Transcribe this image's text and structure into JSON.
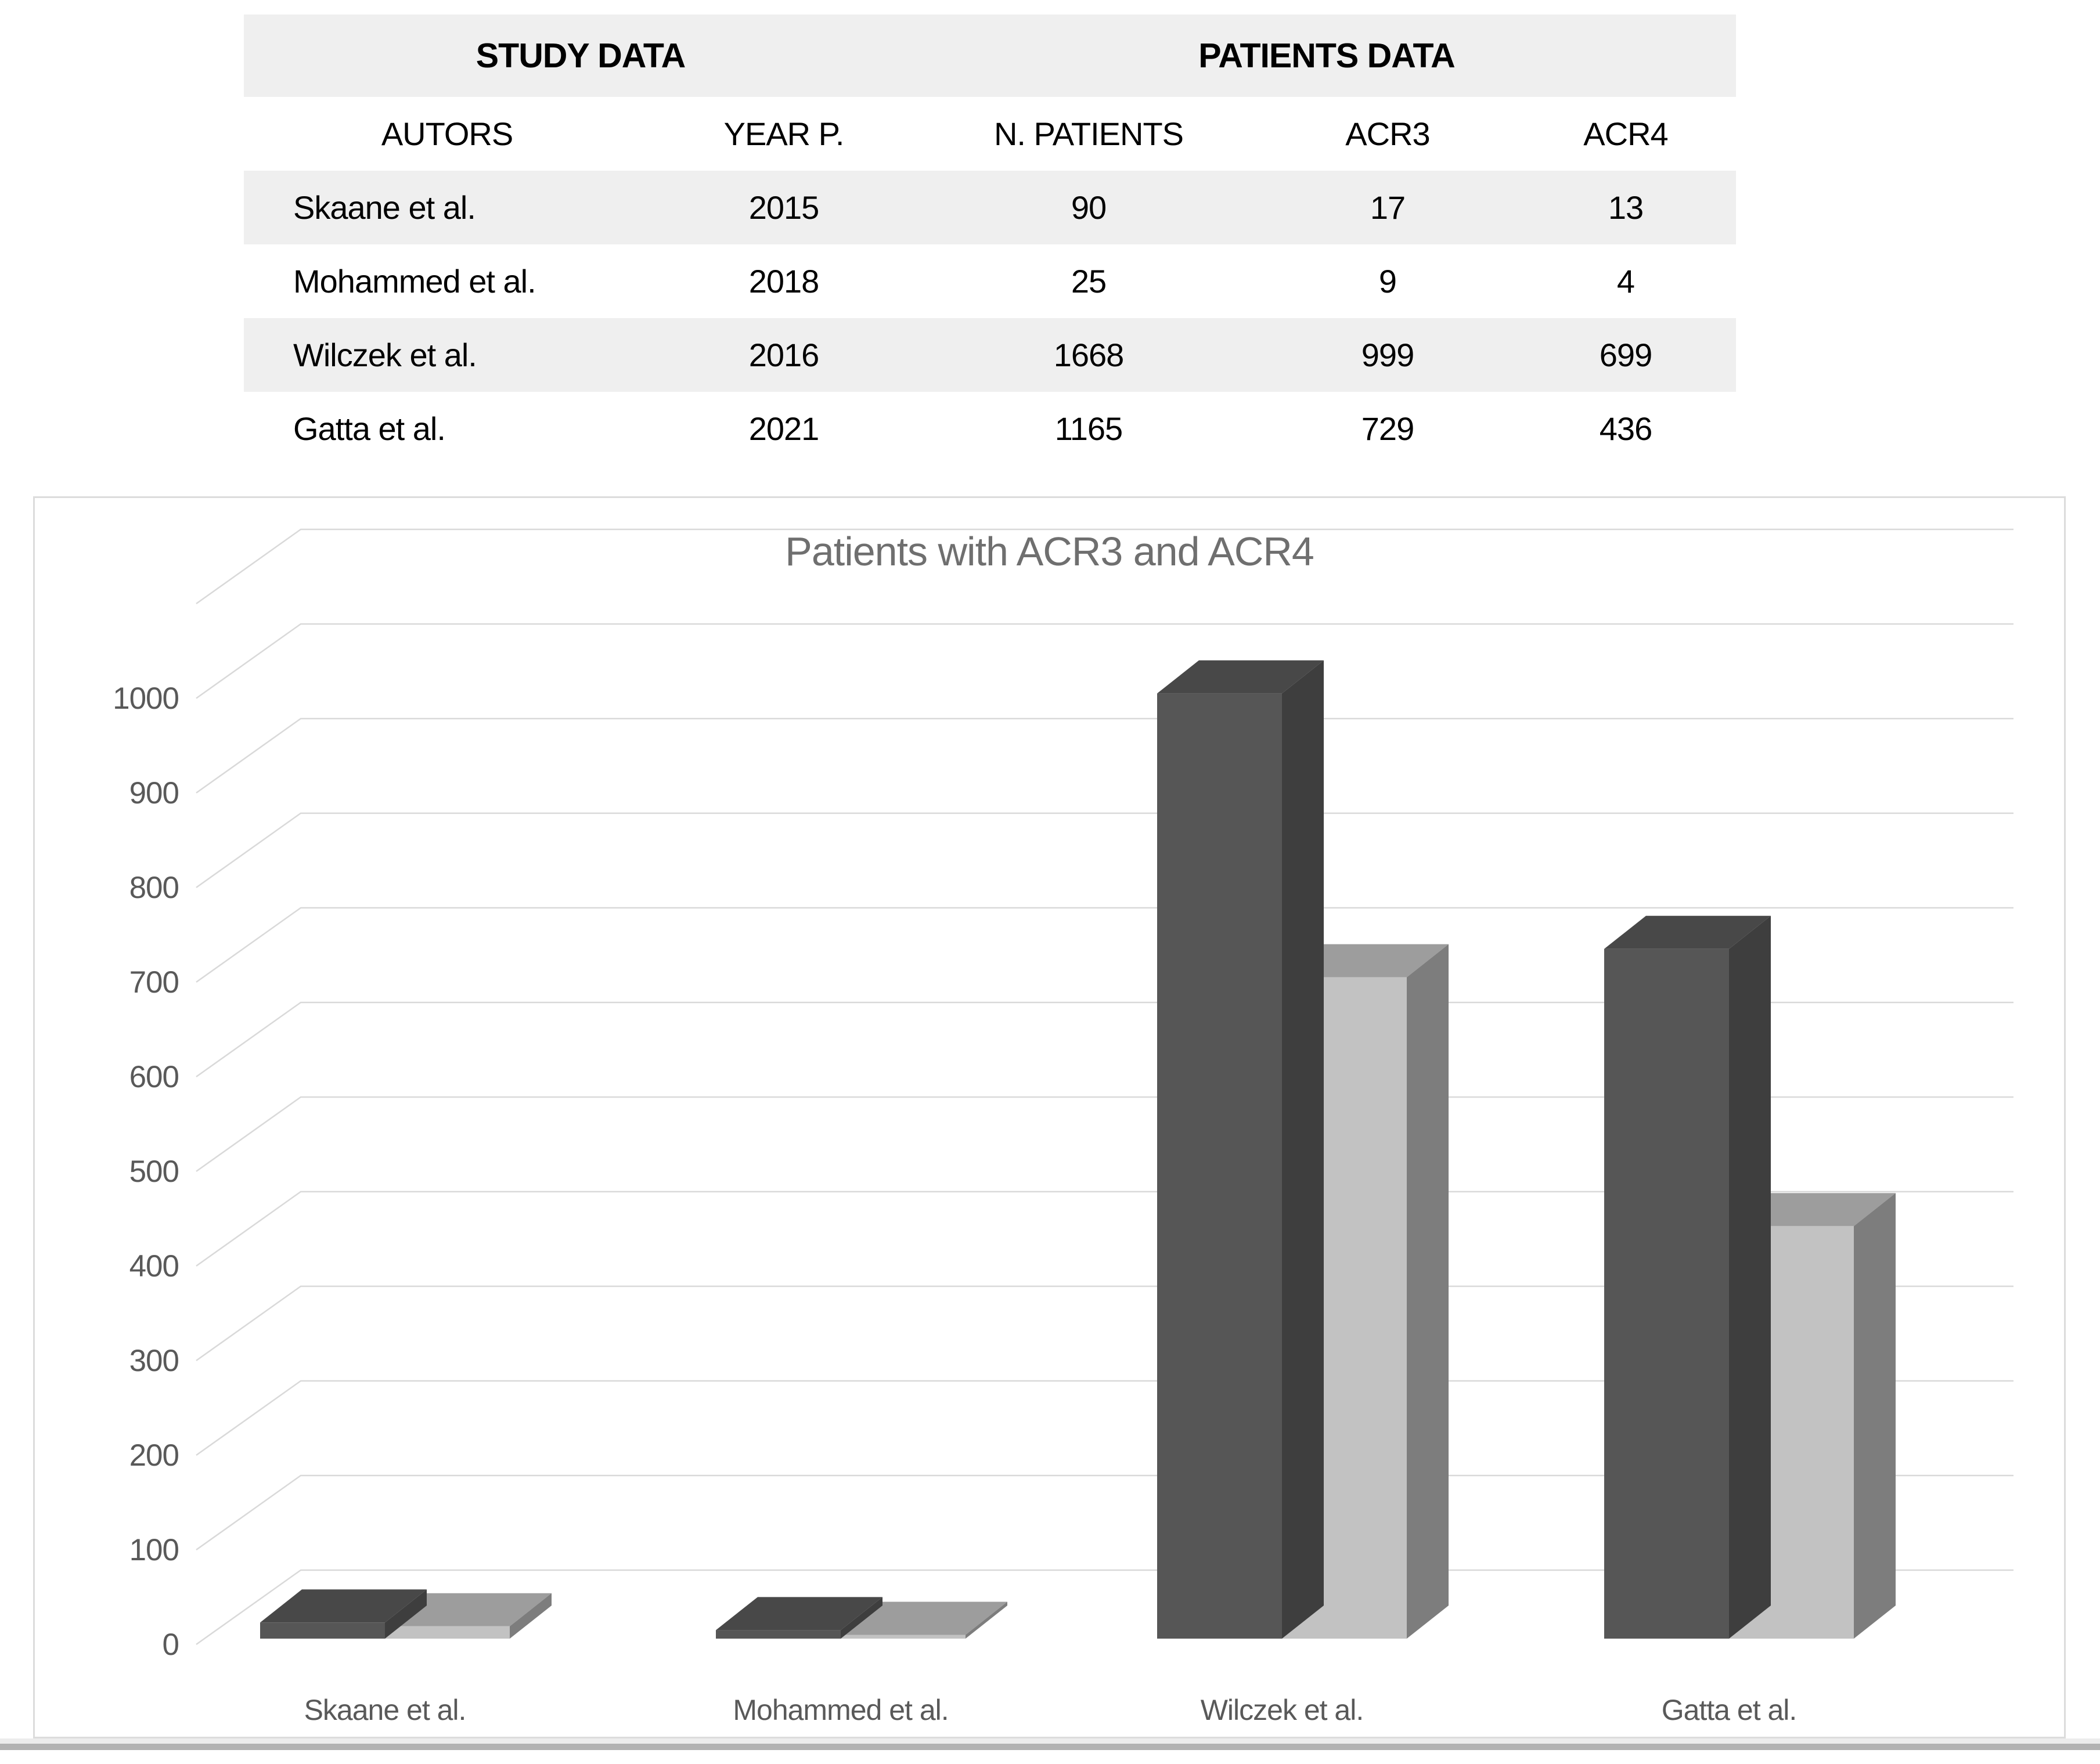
{
  "table": {
    "group_headers": [
      {
        "label": "STUDY DATA",
        "span": 2
      },
      {
        "label": "PATIENTS DATA",
        "span": 3
      }
    ],
    "columns": [
      "AUTORS",
      "YEAR P.",
      "N. PATIENTS",
      "ACR3",
      "ACR4"
    ],
    "rows": [
      {
        "autors": "Skaane et al.",
        "year": "2015",
        "n_patients": "90",
        "acr3": "17",
        "acr4": "13"
      },
      {
        "autors": "Mohammed et al.",
        "year": "2018",
        "n_patients": "25",
        "acr3": "9",
        "acr4": "4"
      },
      {
        "autors": "Wilczek et al.",
        "year": "2016",
        "n_patients": "1668",
        "acr3": "999",
        "acr4": "699"
      },
      {
        "autors": "Gatta et al.",
        "year": "2021",
        "n_patients": "1165",
        "acr3": "729",
        "acr4": "436"
      }
    ]
  },
  "chart_data": {
    "type": "bar",
    "style": "3d-clustered-column",
    "title": "Patients with ACR3 and ACR4",
    "categories": [
      "Skaane et al.",
      "Mohammed et al.",
      "Wilczek et al.",
      "Gatta et al."
    ],
    "series": [
      {
        "name": "ACR3",
        "values": [
          17,
          9,
          999,
          729
        ]
      },
      {
        "name": "ACR4",
        "values": [
          13,
          4,
          699,
          436
        ]
      }
    ],
    "ylim": [
      0,
      1100
    ],
    "ytick_step": 100,
    "ytick_label_max": 1000,
    "xlabel": "",
    "ylabel": "",
    "grid": true,
    "legend": "none"
  },
  "colors": {
    "series_acr3": {
      "front": "#565656",
      "side": "#3e3e3e",
      "top": "#484848"
    },
    "series_acr4": {
      "front": "#c2c2c2",
      "side": "#7d7d7d",
      "top": "#9d9d9d"
    },
    "gridline": "#d9d9d9",
    "axis_text": "#595959",
    "title_text": "#6f6f6f",
    "table_stripe": "#efefef",
    "chart_border": "#dcdcdc",
    "divider_light": "#ececec",
    "divider_dark": "#b2b2b2"
  }
}
